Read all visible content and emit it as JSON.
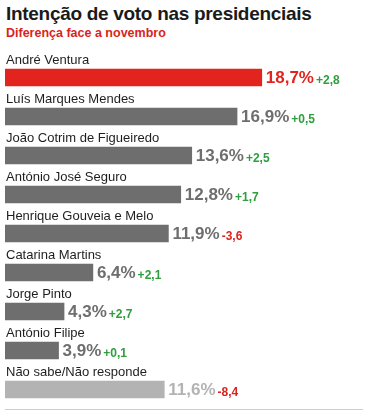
{
  "chart_data": {
    "type": "bar",
    "orientation": "horizontal",
    "title": "Intenção de voto nas presidenciais",
    "subtitle": "Diferença face a novembro",
    "categories": [
      "André Ventura",
      "Luís Marques Mendes",
      "João Cotrim de Figueiredo",
      "António José Seguro",
      "Henrique Gouveia e Melo",
      "Catarina Martins",
      "Jorge Pinto",
      "António Filipe",
      "Não sabe/Não responde"
    ],
    "values": [
      18.7,
      16.9,
      13.6,
      12.8,
      11.9,
      6.4,
      4.3,
      3.9,
      11.6
    ],
    "value_labels": [
      "18,7%",
      "16,9%",
      "13,6%",
      "12,8%",
      "11,9%",
      "6,4%",
      "4,3%",
      "3,9%",
      "11,6%"
    ],
    "differences": [
      2.8,
      0.5,
      2.5,
      1.7,
      -3.6,
      2.1,
      2.7,
      0.1,
      -8.4
    ],
    "difference_labels": [
      "+2,8",
      "+0,5",
      "+2,5",
      "+1,7",
      "-3,6",
      "+2,1",
      "+2,7",
      "+0,1",
      "-8,4"
    ],
    "colors": [
      "#e3231d",
      "#6e6e6e",
      "#6e6e6e",
      "#6e6e6e",
      "#6e6e6e",
      "#6e6e6e",
      "#6e6e6e",
      "#6e6e6e",
      "#b3b3b3"
    ],
    "xlim": [
      0,
      26
    ],
    "grid": false,
    "data_labels": true,
    "tick_labels": false
  }
}
